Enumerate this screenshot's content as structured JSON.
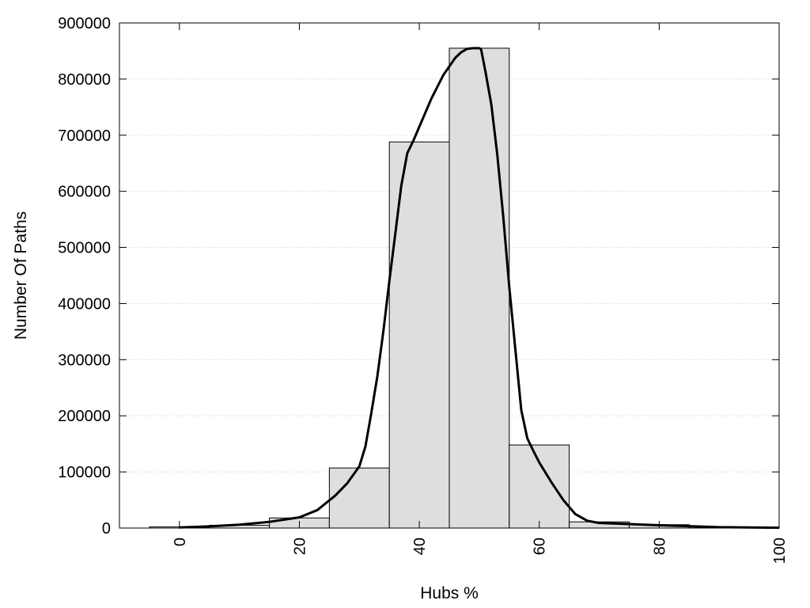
{
  "chart_data": {
    "type": "bar",
    "xlabel": "Hubs %",
    "ylabel": "Number Of Paths",
    "xlim": [
      -10,
      100
    ],
    "ylim": [
      0,
      900000
    ],
    "x_ticks": [
      0,
      20,
      40,
      60,
      80,
      100
    ],
    "y_ticks": [
      0,
      100000,
      200000,
      300000,
      400000,
      500000,
      600000,
      700000,
      800000,
      900000
    ],
    "grid": "horizontal dotted",
    "bars": [
      {
        "x": 0,
        "value": 2000
      },
      {
        "x": 10,
        "value": 5000
      },
      {
        "x": 20,
        "value": 18000
      },
      {
        "x": 30,
        "value": 107000
      },
      {
        "x": 40,
        "value": 688000
      },
      {
        "x": 50,
        "value": 855000
      },
      {
        "x": 60,
        "value": 148000
      },
      {
        "x": 70,
        "value": 11000
      },
      {
        "x": 80,
        "value": 6000
      },
      {
        "x": 90,
        "value": 2000
      }
    ],
    "bar_width": 10,
    "curve": {
      "x": [
        0,
        5,
        10,
        15,
        20,
        23,
        26,
        28,
        30,
        31,
        32,
        33,
        34,
        35,
        36,
        37,
        38,
        39,
        40,
        42,
        44,
        46,
        47,
        48,
        49,
        50,
        50.3,
        51,
        52,
        53,
        54,
        55,
        56,
        57,
        58,
        59,
        60,
        62,
        64,
        66,
        68,
        70,
        75,
        80,
        90,
        100
      ],
      "y": [
        1000,
        3000,
        6000,
        11000,
        19000,
        32000,
        58000,
        80000,
        110000,
        145000,
        205000,
        270000,
        350000,
        440000,
        525000,
        610000,
        668000,
        690000,
        715000,
        765000,
        807000,
        838000,
        848000,
        854000,
        855000,
        855000,
        853000,
        815000,
        755000,
        665000,
        555000,
        430000,
        320000,
        210000,
        160000,
        138000,
        117000,
        82000,
        50000,
        25000,
        13000,
        9000,
        7000,
        5000,
        1500,
        500
      ]
    }
  }
}
